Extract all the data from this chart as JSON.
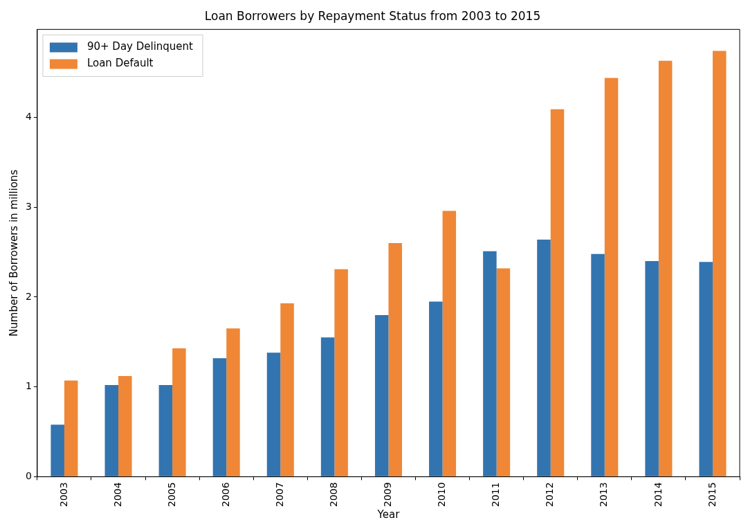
{
  "chart_data": {
    "type": "bar",
    "title": "Loan Borrowers by Repayment Status from 2003 to 2015",
    "xlabel": "Year",
    "ylabel": "Number of Borrowers in millions",
    "categories": [
      "2003",
      "2004",
      "2005",
      "2006",
      "2007",
      "2008",
      "2009",
      "2010",
      "2011",
      "2012",
      "2013",
      "2014",
      "2015"
    ],
    "series": [
      {
        "name": "90+ Day Delinquent",
        "color": "#3274b0",
        "values": [
          0.58,
          1.02,
          1.02,
          1.32,
          1.38,
          1.55,
          1.8,
          1.95,
          2.51,
          2.64,
          2.48,
          2.4,
          2.39
        ]
      },
      {
        "name": "Loan Default",
        "color": "#ef8736",
        "values": [
          1.07,
          1.12,
          1.43,
          1.65,
          1.93,
          2.31,
          2.6,
          2.96,
          2.32,
          4.09,
          4.44,
          4.63,
          4.74
        ]
      }
    ],
    "ylim": [
      0,
      4.98
    ],
    "yticks": [
      0,
      1,
      2,
      3,
      4
    ],
    "legend": "top left"
  }
}
